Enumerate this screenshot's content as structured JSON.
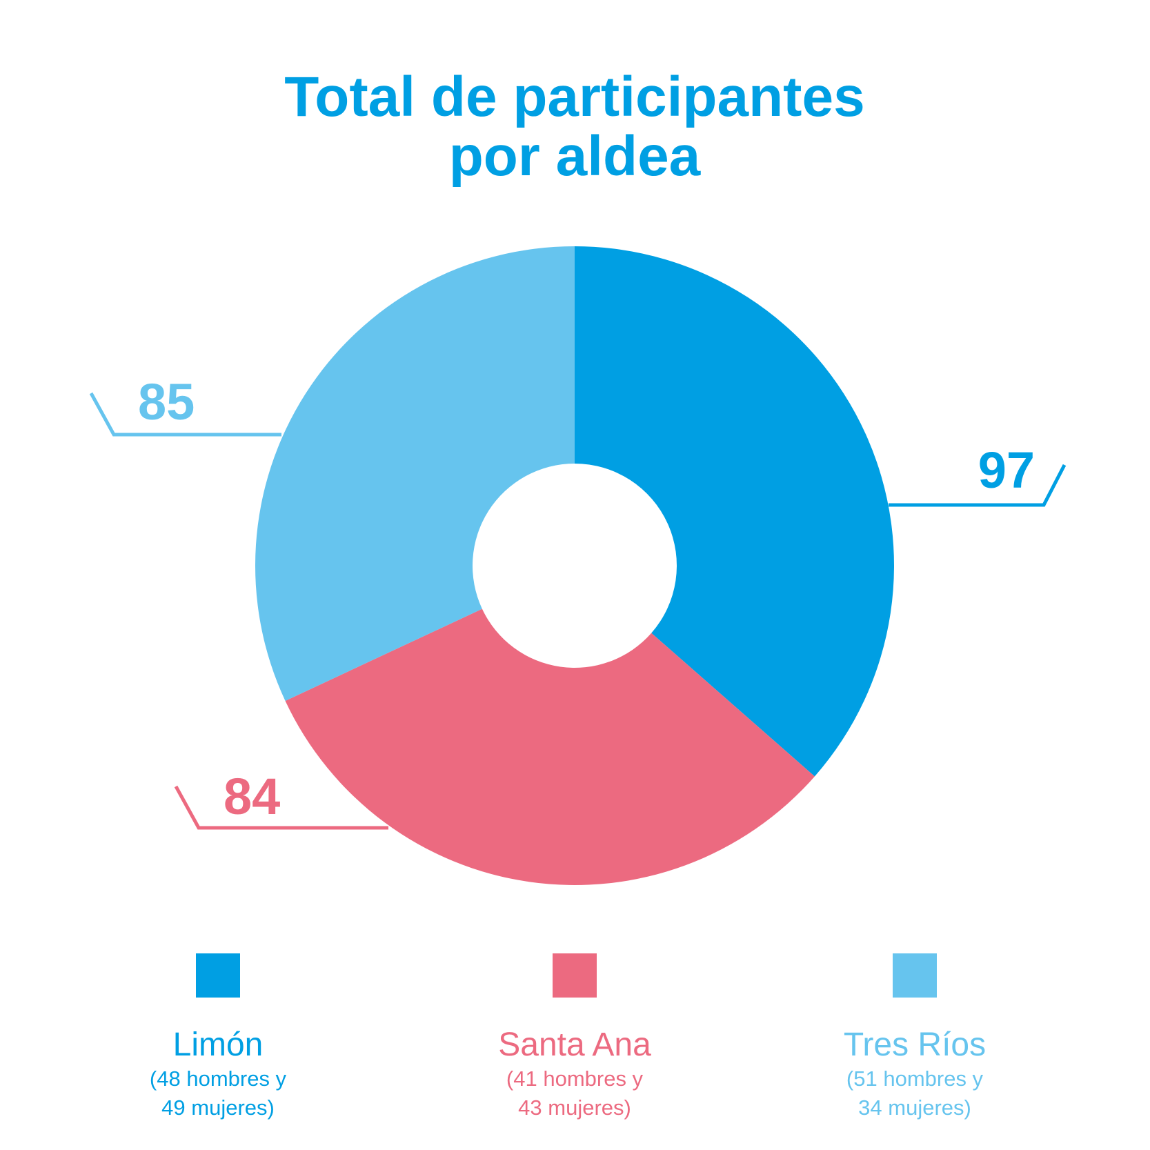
{
  "chart_data": {
    "type": "pie",
    "style": "donut",
    "title_lines": [
      "Total de participantes",
      "por aldea"
    ],
    "title_color": "#009fe3",
    "slices": [
      {
        "label": "Limón",
        "value": 97,
        "detail_lines": [
          "(48 hombres y",
          "49 mujeres)"
        ],
        "color": "#009fe3"
      },
      {
        "label": "Santa Ana",
        "value": 84,
        "detail_lines": [
          "(41 hombres y",
          "43 mujeres)"
        ],
        "color": "#ec6a80"
      },
      {
        "label": "Tres Ríos",
        "value": 85,
        "detail_lines": [
          "(51 hombres y",
          "34 mujeres)"
        ],
        "color": "#66c4ee"
      }
    ],
    "legend_position": "bottom"
  }
}
